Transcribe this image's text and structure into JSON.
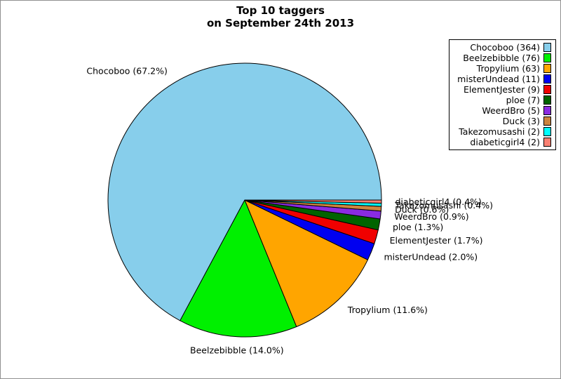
{
  "figure": {
    "title_line1": "Top 10 taggers",
    "title_line2": "on September 24th 2013"
  },
  "chart_data": {
    "type": "pie",
    "title": "Top 10 taggers on September 24th 2013",
    "direction": "counterclockwise",
    "start_angle_deg": 0,
    "legend_position": "upper right",
    "outline_color": "#000000",
    "background_color": "#ffffff",
    "slices": [
      {
        "name": "Chocoboo",
        "count": 364,
        "percent": 67.2,
        "label": "Chocoboo (67.2%)",
        "legend_label": "Chocoboo (364)",
        "color": "#87CEEB"
      },
      {
        "name": "Beelzebibble",
        "count": 76,
        "percent": 14.0,
        "label": "Beelzebibble (14.0%)",
        "legend_label": "Beelzebibble (76)",
        "color": "#00F000"
      },
      {
        "name": "Tropylium",
        "count": 63,
        "percent": 11.6,
        "label": "Tropylium (11.6%)",
        "legend_label": "Tropylium (63)",
        "color": "#FFA500"
      },
      {
        "name": "misterUndead",
        "count": 11,
        "percent": 2.0,
        "label": "misterUndead (2.0%)",
        "legend_label": "misterUndead (11)",
        "color": "#0000F0"
      },
      {
        "name": "ElementJester",
        "count": 9,
        "percent": 1.7,
        "label": "ElementJester (1.7%)",
        "legend_label": "ElementJester (9)",
        "color": "#F00000"
      },
      {
        "name": "ploe",
        "count": 7,
        "percent": 1.3,
        "label": "ploe (1.3%)",
        "legend_label": "ploe (7)",
        "color": "#006400"
      },
      {
        "name": "WeerdBro",
        "count": 5,
        "percent": 0.9,
        "label": "WeerdBro (0.9%)",
        "legend_label": "WeerdBro (5)",
        "color": "#8A2BE2"
      },
      {
        "name": "Duck",
        "count": 3,
        "percent": 0.6,
        "label": "Duck (0.6%)",
        "legend_label": "Duck (3)",
        "color": "#CD853F"
      },
      {
        "name": "Takezomusashi",
        "count": 2,
        "percent": 0.4,
        "label": "Takezomusashi (0.4%)",
        "legend_label": "Takezomusashi (2)",
        "color": "#00FFFF"
      },
      {
        "name": "diabeticgirl4",
        "count": 2,
        "percent": 0.4,
        "label": "diabeticgirl4 (0.4%)",
        "legend_label": "diabeticgirl4 (2)",
        "color": "#FA8072"
      }
    ]
  }
}
